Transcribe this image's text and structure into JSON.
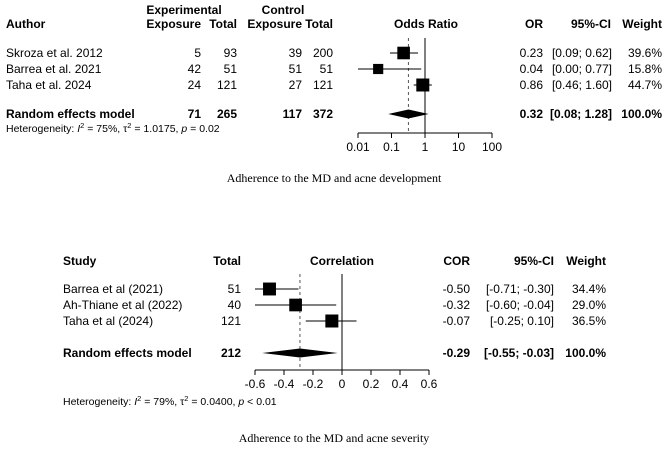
{
  "chart_data": [
    {
      "type": "forest",
      "caption": "Adherence to the MD and acne development",
      "headers": {
        "group1": "Experimental",
        "group2": "Control",
        "author": "Author",
        "exposure1": "Exposure",
        "total1": "Total",
        "exposure2": "Exposure",
        "total2": "Total",
        "plot": "Odds Ratio",
        "est": "OR",
        "ci": "95%-CI",
        "weight": "Weight"
      },
      "scale": "log",
      "xlim": [
        0.01,
        100
      ],
      "ticks": [
        0.01,
        0.1,
        1,
        10,
        100
      ],
      "tick_labels": [
        "0.01",
        "0.1",
        "1",
        "10",
        "100"
      ],
      "null_value": 1,
      "studies": [
        {
          "name": "Skroza et al. 2012",
          "exposure1": "5",
          "total1": "93",
          "exposure2": "39",
          "total2": "200",
          "est": 0.23,
          "lo": 0.09,
          "hi": 0.62,
          "est_label": "0.23",
          "ci_label": "[0.09; 0.62]",
          "weight_label": "39.6%",
          "weight": 39.6
        },
        {
          "name": "Barrea et al. 2021",
          "exposure1": "42",
          "total1": "51",
          "exposure2": "51",
          "total2": "51",
          "est": 0.04,
          "lo": 0.001,
          "hi": 0.77,
          "est_label": "0.04",
          "ci_label": "[0.00; 0.77]",
          "weight_label": "15.8%",
          "weight": 15.8
        },
        {
          "name": "Taha et al. 2024",
          "exposure1": "24",
          "total1": "121",
          "exposure2": "27",
          "total2": "121",
          "est": 0.86,
          "lo": 0.46,
          "hi": 1.6,
          "est_label": "0.86",
          "ci_label": "[0.46; 1.60]",
          "weight_label": "44.7%",
          "weight": 44.7
        }
      ],
      "summary": {
        "name": "Random effects model",
        "exposure1": "71",
        "total1": "265",
        "exposure2": "117",
        "total2": "372",
        "est": 0.32,
        "lo": 0.08,
        "hi": 1.28,
        "est_label": "0.32",
        "ci_label": "[0.08; 1.28]",
        "weight_label": "100.0%"
      },
      "heterogeneity": {
        "prefix": "Heterogeneity: ",
        "i2": "I",
        "i2_val": " = 75%, ",
        "tau": "τ",
        "tau_val": " = 1.0175, ",
        "p": "p",
        "p_val": " = 0.02"
      }
    },
    {
      "type": "forest",
      "caption": "Adherence to the MD and acne severity",
      "headers": {
        "study": "Study",
        "total": "Total",
        "plot": "Correlation",
        "est": "COR",
        "ci": "95%-CI",
        "weight": "Weight"
      },
      "scale": "linear",
      "xlim": [
        -0.6,
        0.6
      ],
      "ticks": [
        -0.6,
        -0.4,
        -0.2,
        0,
        0.2,
        0.4,
        0.6
      ],
      "tick_labels": [
        "-0.6",
        "-0.4",
        "-0.2",
        "0",
        "0.2",
        "0.4",
        "0.6"
      ],
      "null_value": 0,
      "studies": [
        {
          "name": "Barrea et al (2021)",
          "total": "51",
          "est": -0.5,
          "lo": -0.71,
          "hi": -0.3,
          "est_label": "-0.50",
          "ci_label": "[-0.71; -0.30]",
          "weight_label": "34.4%",
          "weight": 34.4
        },
        {
          "name": "Ah-Thiane et al (2022)",
          "total": "40",
          "est": -0.32,
          "lo": -0.6,
          "hi": -0.04,
          "est_label": "-0.32",
          "ci_label": "[-0.60; -0.04]",
          "weight_label": "29.0%",
          "weight": 29.0
        },
        {
          "name": "Taha et al (2024)",
          "total": "121",
          "est": -0.07,
          "lo": -0.25,
          "hi": 0.1,
          "est_label": "-0.07",
          "ci_label": "[-0.25; 0.10]",
          "weight_label": "36.5%",
          "weight": 36.5
        }
      ],
      "summary": {
        "name": "Random effects model",
        "total": "212",
        "est": -0.29,
        "lo": -0.55,
        "hi": -0.03,
        "est_label": "-0.29",
        "ci_label": "[-0.55; -0.03]",
        "weight_label": "100.0%"
      },
      "heterogeneity": {
        "prefix": "Heterogeneity: ",
        "i2": "I",
        "i2_val": " = 79%, ",
        "tau": "τ",
        "tau_val": " = 0.0400, ",
        "p": "p",
        "p_val": " < 0.01"
      }
    }
  ]
}
